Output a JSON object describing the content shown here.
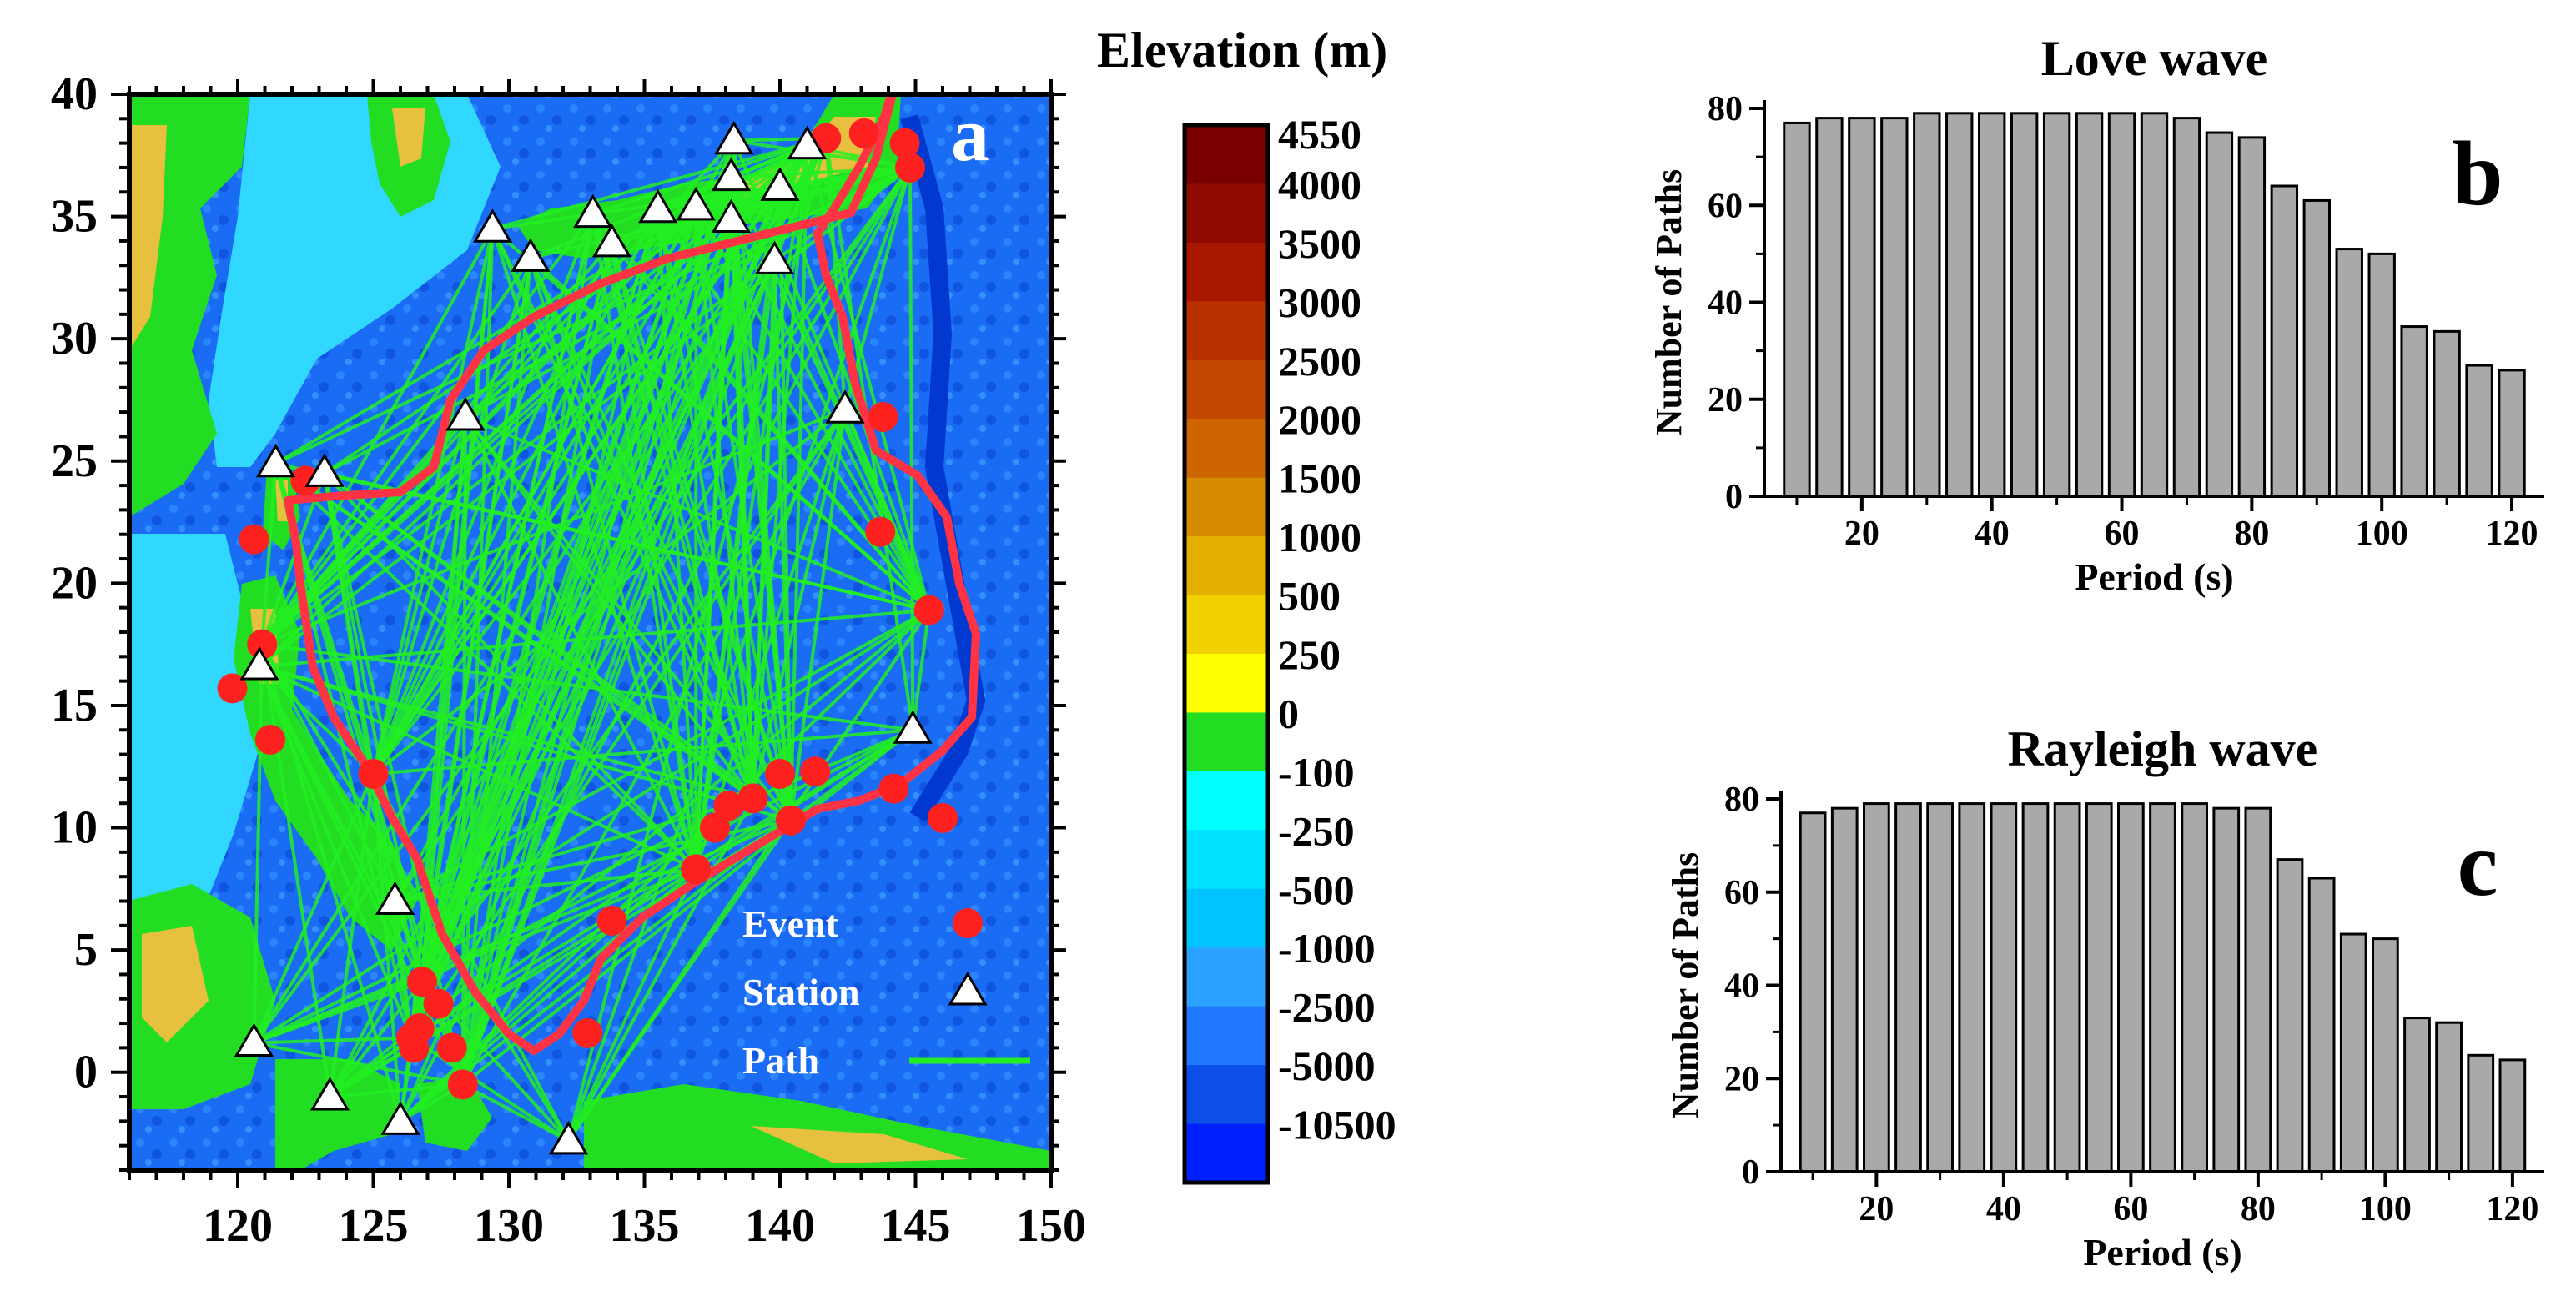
{
  "chart_data": [
    {
      "id": "a",
      "type": "map",
      "panel_label": "a",
      "xlim": [
        116,
        150
      ],
      "ylim": [
        -4,
        40
      ],
      "xticks": [
        120,
        125,
        130,
        135,
        140,
        145,
        150
      ],
      "yticks": [
        0,
        5,
        10,
        15,
        20,
        25,
        30,
        35,
        40
      ],
      "legend": {
        "event": "Event",
        "station": "Station",
        "path": "Path"
      },
      "colors": {
        "event": "#ff2020",
        "station": "#ffffff",
        "path": "#22ee22",
        "boundary": "#ff3344",
        "ocean_deep": "#0b4fe8",
        "ocean": "#1f78ff",
        "shelf": "#30d8ff",
        "land_low": "#22dd22",
        "land_high": "#e8c040"
      },
      "stations": [
        [
          138.3,
          38.1
        ],
        [
          141,
          37.9
        ],
        [
          138.2,
          36.6
        ],
        [
          140,
          36.2
        ],
        [
          136.9,
          35.4
        ],
        [
          135.5,
          35.3
        ],
        [
          133.1,
          35.1
        ],
        [
          138.2,
          34.9
        ],
        [
          133.8,
          33.9
        ],
        [
          129.4,
          34.5
        ],
        [
          130.8,
          33.3
        ],
        [
          139.8,
          33.2
        ],
        [
          142.4,
          27.1
        ],
        [
          128.4,
          26.8
        ],
        [
          121.4,
          24.9
        ],
        [
          123.2,
          24.5
        ],
        [
          144.9,
          14.0
        ],
        [
          120.8,
          16.6
        ],
        [
          125.8,
          7.0
        ],
        [
          120.6,
          1.2
        ],
        [
          123.4,
          -1.0
        ],
        [
          126.0,
          -2.0
        ],
        [
          132.2,
          -2.8
        ]
      ],
      "events": [
        [
          141.7,
          38.2
        ],
        [
          143.1,
          38.4
        ],
        [
          144.6,
          38.0
        ],
        [
          144.8,
          37.0
        ],
        [
          143.8,
          26.8
        ],
        [
          143.7,
          22.1
        ],
        [
          145.5,
          18.9
        ],
        [
          122.5,
          24.2
        ],
        [
          120.6,
          21.8
        ],
        [
          120.9,
          17.5
        ],
        [
          119.8,
          15.7
        ],
        [
          121.2,
          13.6
        ],
        [
          125.0,
          12.2
        ],
        [
          140.0,
          12.2
        ],
        [
          141.3,
          12.3
        ],
        [
          139.0,
          11.2
        ],
        [
          138.1,
          10.9
        ],
        [
          137.6,
          10.0
        ],
        [
          140.4,
          10.3
        ],
        [
          144.2,
          11.6
        ],
        [
          146.0,
          10.4
        ],
        [
          136.9,
          8.3
        ],
        [
          133.8,
          6.2
        ],
        [
          132.9,
          1.6
        ],
        [
          126.8,
          3.7
        ],
        [
          127.4,
          2.8
        ],
        [
          126.7,
          1.8
        ],
        [
          126.4,
          1.4
        ],
        [
          126.5,
          1.0
        ],
        [
          127.9,
          1.0
        ],
        [
          128.3,
          -0.5
        ]
      ],
      "colorbar": {
        "title": "Elevation (m)",
        "labels": [
          "4550",
          "4000",
          "3500",
          "3000",
          "2500",
          "2000",
          "1500",
          "1000",
          "500",
          "250",
          "0",
          "-100",
          "-250",
          "-500",
          "-1000",
          "-2500",
          "-5000",
          "-10500"
        ],
        "colors": [
          "#7a0000",
          "#8f0a00",
          "#a81800",
          "#b83000",
          "#c24800",
          "#cc6400",
          "#d68a00",
          "#e3b000",
          "#f0d000",
          "#ffff00",
          "#22dd22",
          "#00ffff",
          "#00e0ff",
          "#00c4ff",
          "#2ba2ff",
          "#1f78ff",
          "#0b4fe8",
          "#0020ff"
        ]
      }
    },
    {
      "id": "b",
      "type": "bar",
      "title": "Love wave",
      "panel_label": "b",
      "xlabel": "Period (s)",
      "ylabel": "Number of Paths",
      "xlim": [
        5,
        125
      ],
      "ylim": [
        0,
        80
      ],
      "xticks": [
        20,
        40,
        60,
        80,
        100,
        120
      ],
      "yticks": [
        0,
        20,
        40,
        60,
        80
      ],
      "x": [
        10,
        15,
        20,
        25,
        30,
        35,
        40,
        45,
        50,
        55,
        60,
        65,
        70,
        75,
        80,
        85,
        90,
        95,
        100,
        105,
        110,
        115,
        120
      ],
      "values": [
        77,
        78,
        78,
        78,
        79,
        79,
        79,
        79,
        79,
        79,
        79,
        79,
        78,
        75,
        74,
        64,
        61,
        51,
        50,
        35,
        34,
        27,
        26
      ],
      "bar_color": "#a9a9a9"
    },
    {
      "id": "c",
      "type": "bar",
      "title": "Rayleigh wave",
      "panel_label": "c",
      "xlabel": "Period (s)",
      "ylabel": "Number of Paths",
      "xlim": [
        5,
        125
      ],
      "ylim": [
        0,
        80
      ],
      "xticks": [
        20,
        40,
        60,
        80,
        100,
        120
      ],
      "yticks": [
        0,
        20,
        40,
        60,
        80
      ],
      "x": [
        10,
        15,
        20,
        25,
        30,
        35,
        40,
        45,
        50,
        55,
        60,
        65,
        70,
        75,
        80,
        85,
        90,
        95,
        100,
        105,
        110,
        115,
        120
      ],
      "values": [
        77,
        78,
        79,
        79,
        79,
        79,
        79,
        79,
        79,
        79,
        79,
        79,
        79,
        78,
        78,
        67,
        63,
        51,
        50,
        33,
        32,
        25,
        24
      ],
      "bar_color": "#a9a9a9"
    }
  ]
}
